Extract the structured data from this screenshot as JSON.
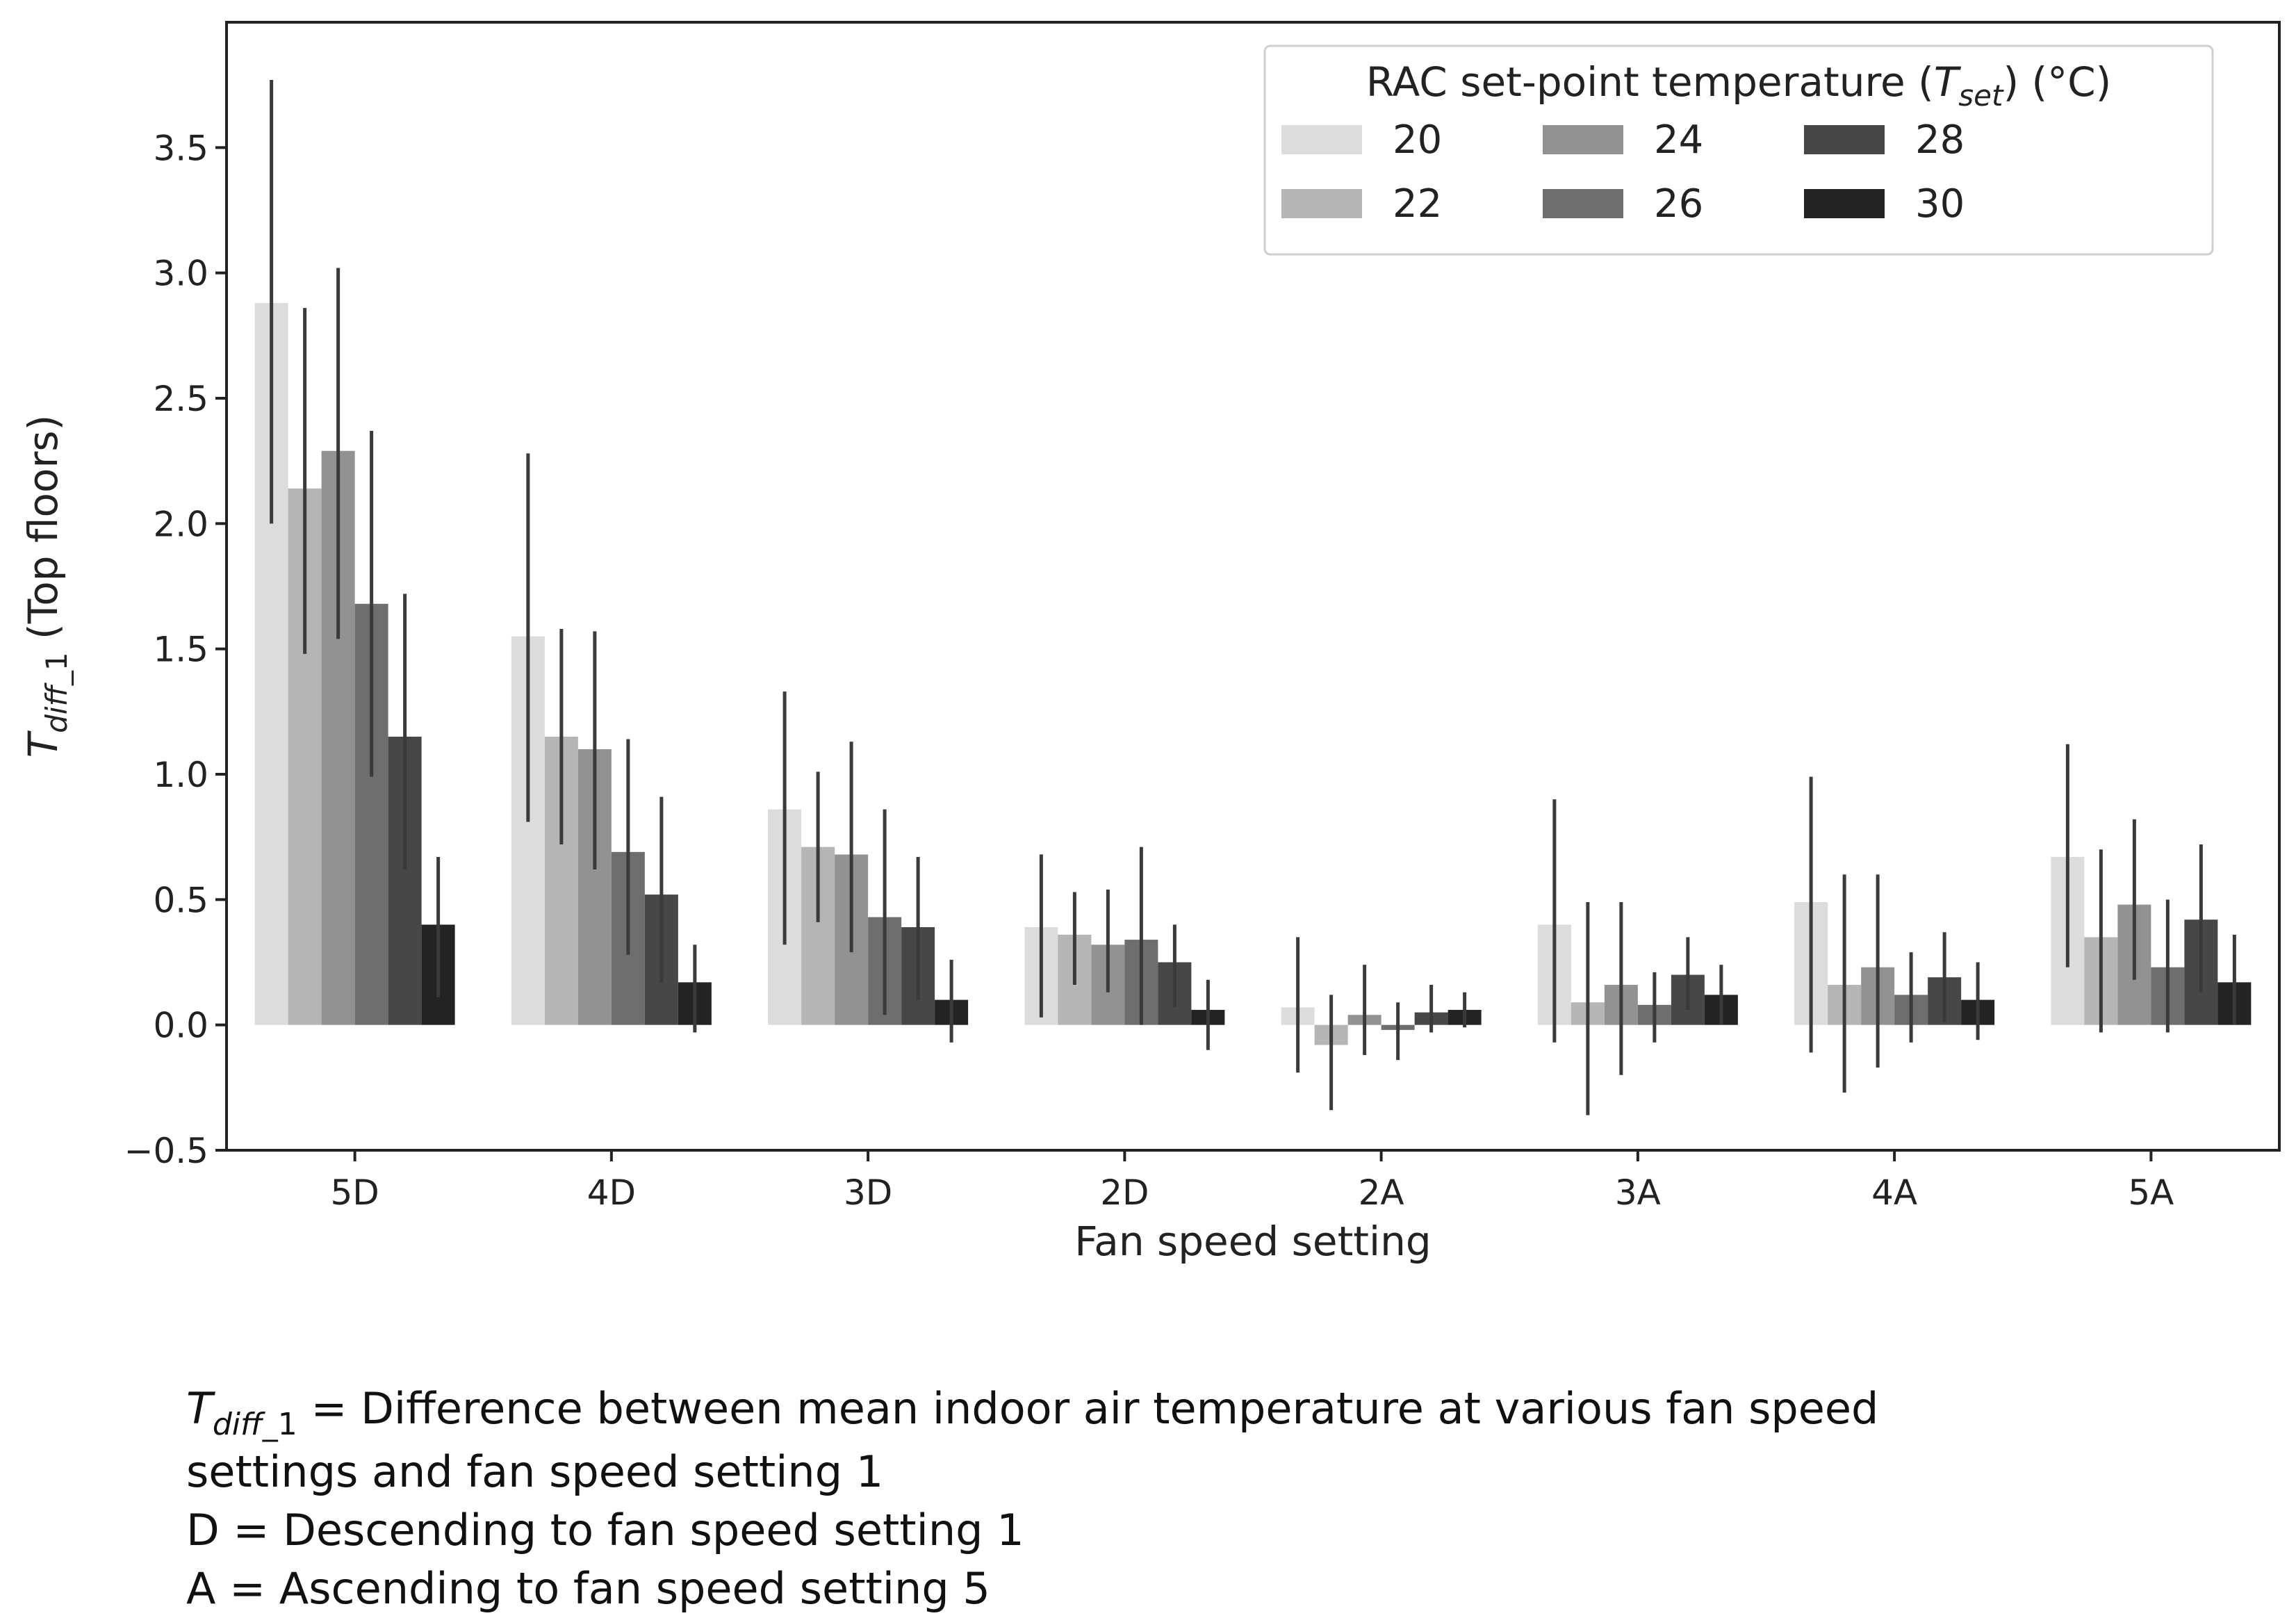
{
  "chart_data": {
    "type": "bar",
    "title": "",
    "xlabel": "Fan speed setting",
    "ylabel": {
      "symbol": "T",
      "subscript": "diff",
      "subscript_index": "_1",
      "suffix": " (Top floors)"
    },
    "ylim": [
      -0.5,
      4.0
    ],
    "yticks": [
      -0.5,
      0.0,
      0.5,
      1.0,
      1.5,
      2.0,
      2.5,
      3.0,
      3.5
    ],
    "ytick_labels": [
      "−0.5",
      "0.0",
      "0.5",
      "1.0",
      "1.5",
      "2.0",
      "2.5",
      "3.0",
      "3.5"
    ],
    "categories": [
      "5D",
      "4D",
      "3D",
      "2D",
      "2A",
      "3A",
      "4A",
      "5A"
    ],
    "legend": {
      "title_prefix": "RAC set-point temperature (",
      "title_symbol": "T",
      "title_subscript": "set",
      "title_suffix": ") (°C)",
      "position": "top-right"
    },
    "series": [
      {
        "name": "20",
        "color": "#dcdcdc",
        "values": [
          2.88,
          1.55,
          0.86,
          0.39,
          0.07,
          0.4,
          0.49,
          0.67
        ],
        "err_low": [
          2.0,
          0.81,
          0.32,
          0.03,
          -0.19,
          -0.07,
          -0.11,
          0.23
        ],
        "err_high": [
          3.77,
          2.28,
          1.33,
          0.68,
          0.35,
          0.9,
          0.99,
          1.12
        ]
      },
      {
        "name": "22",
        "color": "#b5b5b5",
        "values": [
          2.14,
          1.15,
          0.71,
          0.36,
          -0.08,
          0.09,
          0.16,
          0.35
        ],
        "err_low": [
          1.48,
          0.72,
          0.41,
          0.16,
          -0.34,
          -0.36,
          -0.27,
          -0.03
        ],
        "err_high": [
          2.86,
          1.58,
          1.01,
          0.53,
          0.12,
          0.49,
          0.6,
          0.7
        ]
      },
      {
        "name": "24",
        "color": "#929292",
        "values": [
          2.29,
          1.1,
          0.68,
          0.32,
          0.04,
          0.16,
          0.23,
          0.48
        ],
        "err_low": [
          1.54,
          0.62,
          0.29,
          0.13,
          -0.12,
          -0.2,
          -0.17,
          0.18
        ],
        "err_high": [
          3.02,
          1.57,
          1.13,
          0.54,
          0.24,
          0.49,
          0.6,
          0.82
        ]
      },
      {
        "name": "26",
        "color": "#6e6e6e",
        "values": [
          1.68,
          0.69,
          0.43,
          0.34,
          -0.02,
          0.08,
          0.12,
          0.23
        ],
        "err_low": [
          0.99,
          0.28,
          0.04,
          0.0,
          -0.14,
          -0.07,
          -0.07,
          -0.03
        ],
        "err_high": [
          2.37,
          1.14,
          0.86,
          0.71,
          0.09,
          0.21,
          0.29,
          0.5
        ]
      },
      {
        "name": "28",
        "color": "#474747",
        "values": [
          1.15,
          0.52,
          0.39,
          0.25,
          0.05,
          0.2,
          0.19,
          0.42
        ],
        "err_low": [
          0.62,
          0.17,
          0.1,
          0.07,
          -0.03,
          0.06,
          0.01,
          0.13
        ],
        "err_high": [
          1.72,
          0.91,
          0.67,
          0.4,
          0.16,
          0.35,
          0.37,
          0.72
        ]
      },
      {
        "name": "30",
        "color": "#232323",
        "values": [
          0.4,
          0.17,
          0.1,
          0.06,
          0.06,
          0.12,
          0.1,
          0.17
        ],
        "err_low": [
          0.11,
          -0.03,
          -0.07,
          -0.1,
          -0.01,
          0.0,
          -0.06,
          0.0
        ],
        "err_high": [
          0.67,
          0.32,
          0.26,
          0.18,
          0.13,
          0.24,
          0.25,
          0.36
        ]
      }
    ]
  },
  "notes": {
    "tdiff_symbol": "T",
    "tdiff_subscript": "diff",
    "tdiff_subscript_index": "_1",
    "tdiff_definition_line1": " = Difference between mean indoor air temperature at various fan speed",
    "tdiff_definition_line2": "settings and fan speed setting 1",
    "d_definition": "D = Descending to fan speed setting 1",
    "a_definition": "A = Ascending to fan speed setting 5"
  }
}
